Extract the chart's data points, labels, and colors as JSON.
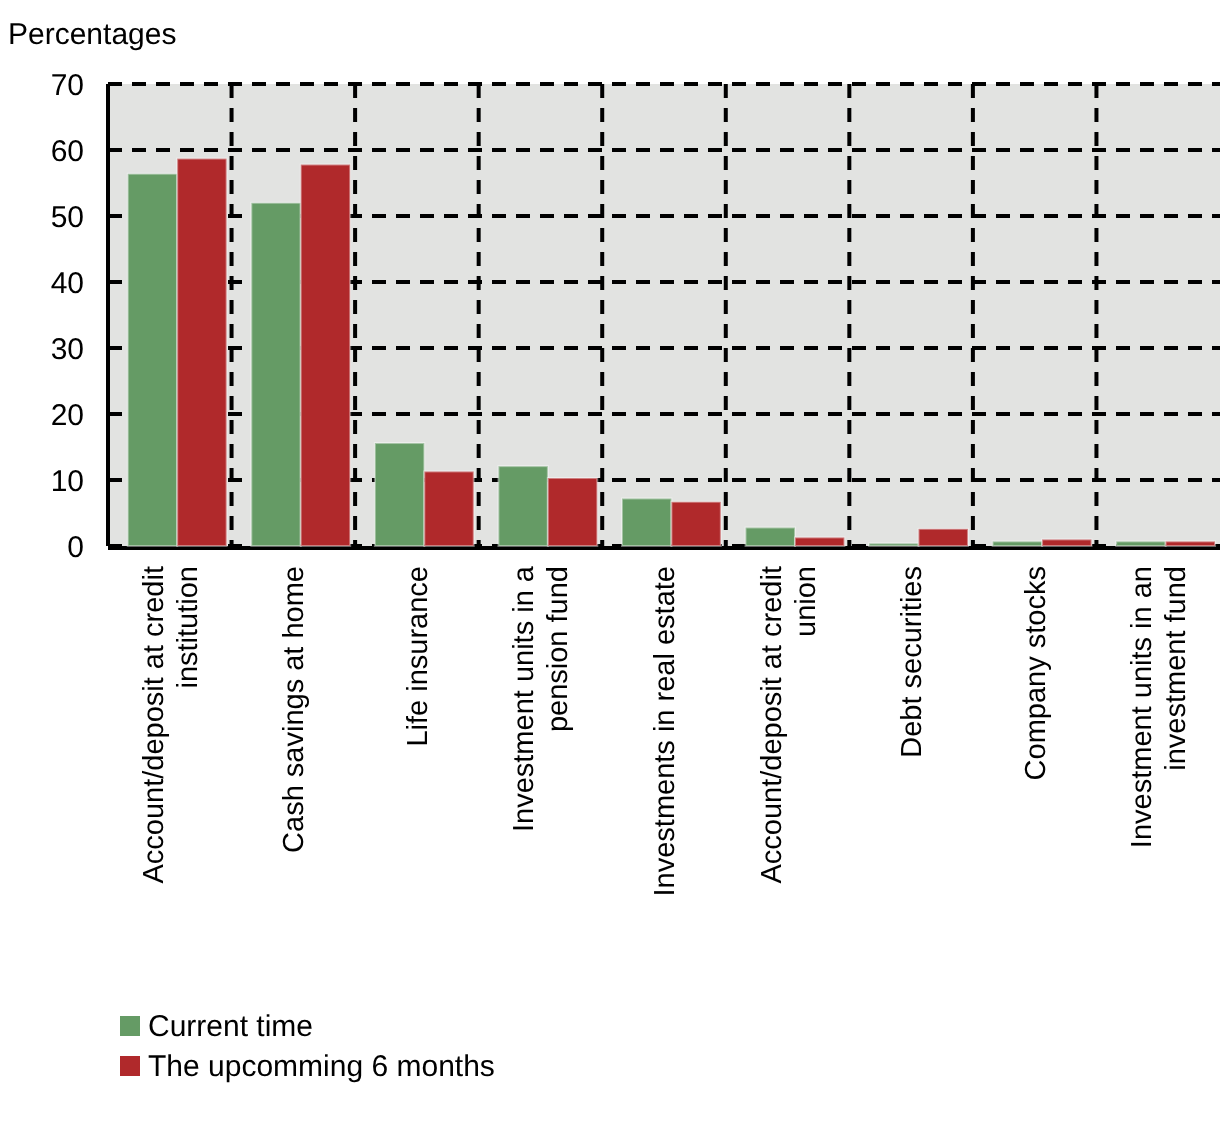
{
  "chart_data": {
    "type": "bar",
    "ylabel": "Percentages",
    "categories": [
      "Account/deposit at credit institution",
      "Cash savings at home",
      "Life insurance",
      "Investment units in a pension fund",
      "Investments in real estate",
      "Account/deposit at credit union",
      "Debt securities",
      "Company stocks",
      "Investment units in an investment fund"
    ],
    "series": [
      {
        "name": "Current time",
        "color": "#659b65",
        "values": [
          56.4,
          52,
          15.6,
          12.1,
          7.2,
          2.8,
          0.4,
          0.7,
          0.7
        ]
      },
      {
        "name": "The upcomming 6 months",
        "color": "#b0292b",
        "values": [
          58.7,
          57.8,
          11.3,
          10.3,
          6.7,
          1.3,
          2.6,
          1.0,
          0.7
        ]
      }
    ],
    "ylim": [
      0,
      70
    ],
    "yticks": [
      0,
      10,
      20,
      30,
      40,
      50,
      60,
      70
    ],
    "grid": true,
    "legend": "bottom left"
  }
}
